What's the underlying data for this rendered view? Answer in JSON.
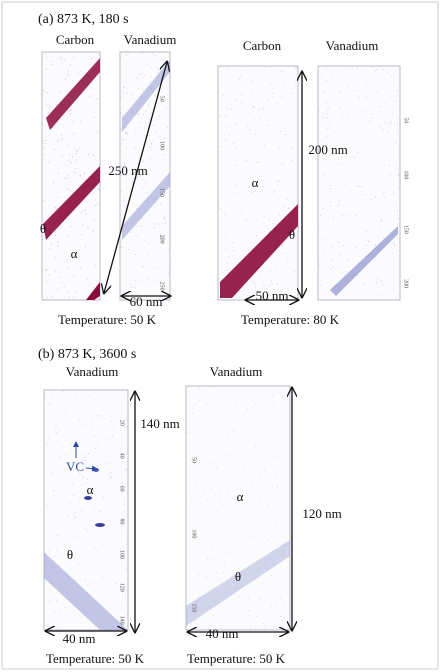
{
  "panel_a": {
    "label": "(a) 873 K, 180 s",
    "specimens": [
      {
        "elements": [
          "Carbon",
          "Vanadium"
        ],
        "length": "250 nm",
        "width": "60 nm",
        "temperature": "Temperature: 50 K",
        "phases": [
          "θ",
          "α"
        ],
        "z_ticks": [
          "50",
          "100",
          "150",
          "200",
          "250"
        ]
      },
      {
        "elements": [
          "Carbon",
          "Vanadium"
        ],
        "length": "200 nm",
        "width": "50 nm",
        "temperature": "Temperature: 80 K",
        "phases": [
          "α",
          "θ"
        ],
        "z_ticks": [
          "50",
          "100",
          "150",
          "200"
        ]
      }
    ]
  },
  "panel_b": {
    "label": "(b) 873 K, 3600 s",
    "specimens": [
      {
        "elements": [
          "Vanadium"
        ],
        "length": "140 nm",
        "width": "40 nm",
        "temperature": "Temperature: 50 K",
        "phases": [
          "α",
          "θ"
        ],
        "precipitate": "VC",
        "z_ticks": [
          "20",
          "40",
          "60",
          "80",
          "100",
          "120",
          "140"
        ]
      },
      {
        "elements": [
          "Vanadium"
        ],
        "length": "120 nm",
        "width": "40 nm",
        "temperature": "Temperature: 50 K",
        "phases": [
          "α",
          "θ"
        ],
        "z_ticks": [
          "50",
          "100",
          "150"
        ]
      }
    ]
  }
}
